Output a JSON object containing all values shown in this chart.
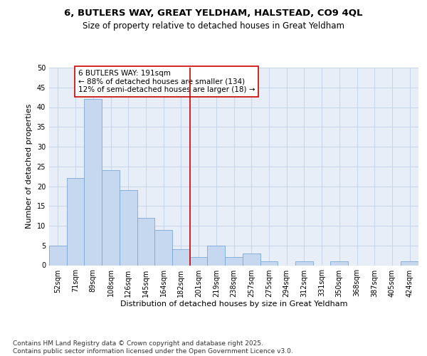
{
  "title_line1": "6, BUTLERS WAY, GREAT YELDHAM, HALSTEAD, CO9 4QL",
  "title_line2": "Size of property relative to detached houses in Great Yeldham",
  "xlabel": "Distribution of detached houses by size in Great Yeldham",
  "ylabel": "Number of detached properties",
  "categories": [
    "52sqm",
    "71sqm",
    "89sqm",
    "108sqm",
    "126sqm",
    "145sqm",
    "164sqm",
    "182sqm",
    "201sqm",
    "219sqm",
    "238sqm",
    "257sqm",
    "275sqm",
    "294sqm",
    "312sqm",
    "331sqm",
    "350sqm",
    "368sqm",
    "387sqm",
    "405sqm",
    "424sqm"
  ],
  "values": [
    5,
    22,
    42,
    24,
    19,
    12,
    9,
    4,
    2,
    5,
    2,
    3,
    1,
    0,
    1,
    0,
    1,
    0,
    0,
    0,
    1
  ],
  "bar_color": "#c5d8f0",
  "bar_edge_color": "#7ba8d4",
  "vline_x_index": 7.5,
  "vline_color": "#cc0000",
  "annotation_text": "6 BUTLERS WAY: 191sqm\n← 88% of detached houses are smaller (134)\n12% of semi-detached houses are larger (18) →",
  "annotation_box_color": "#cc0000",
  "ylim": [
    0,
    50
  ],
  "yticks": [
    0,
    5,
    10,
    15,
    20,
    25,
    30,
    35,
    40,
    45,
    50
  ],
  "grid_color": "#c8d4e8",
  "background_color": "#e8eef8",
  "footer_text": "Contains HM Land Registry data © Crown copyright and database right 2025.\nContains public sector information licensed under the Open Government Licence v3.0.",
  "title_fontsize": 9.5,
  "subtitle_fontsize": 8.5,
  "axis_label_fontsize": 8,
  "tick_fontsize": 7,
  "annotation_fontsize": 7.5,
  "footer_fontsize": 6.5
}
